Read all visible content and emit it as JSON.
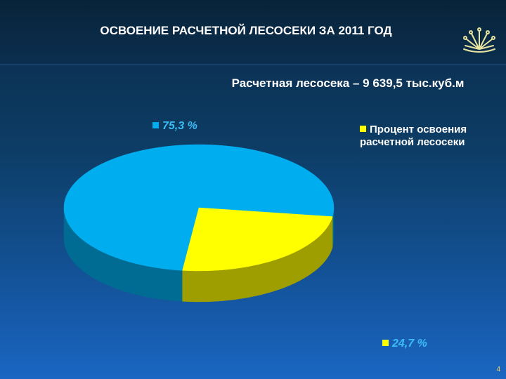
{
  "chart_data": {
    "type": "pie",
    "title": "ОСВОЕНИЕ РАСЧЕТНОЙ ЛЕСОСЕКИ ЗА 2011 ГОД",
    "subtitle": "Расчетная лесосека – 9 639,5 тыс.куб.м",
    "series": [
      {
        "name": "Процент освоения расчетной лесосеки",
        "values": [
          75.3,
          24.7
        ],
        "value_labels": [
          "75,3 %",
          "24,7 %"
        ],
        "colors": [
          "#00aeef",
          "#ffff00"
        ]
      }
    ]
  },
  "page_number": "4"
}
